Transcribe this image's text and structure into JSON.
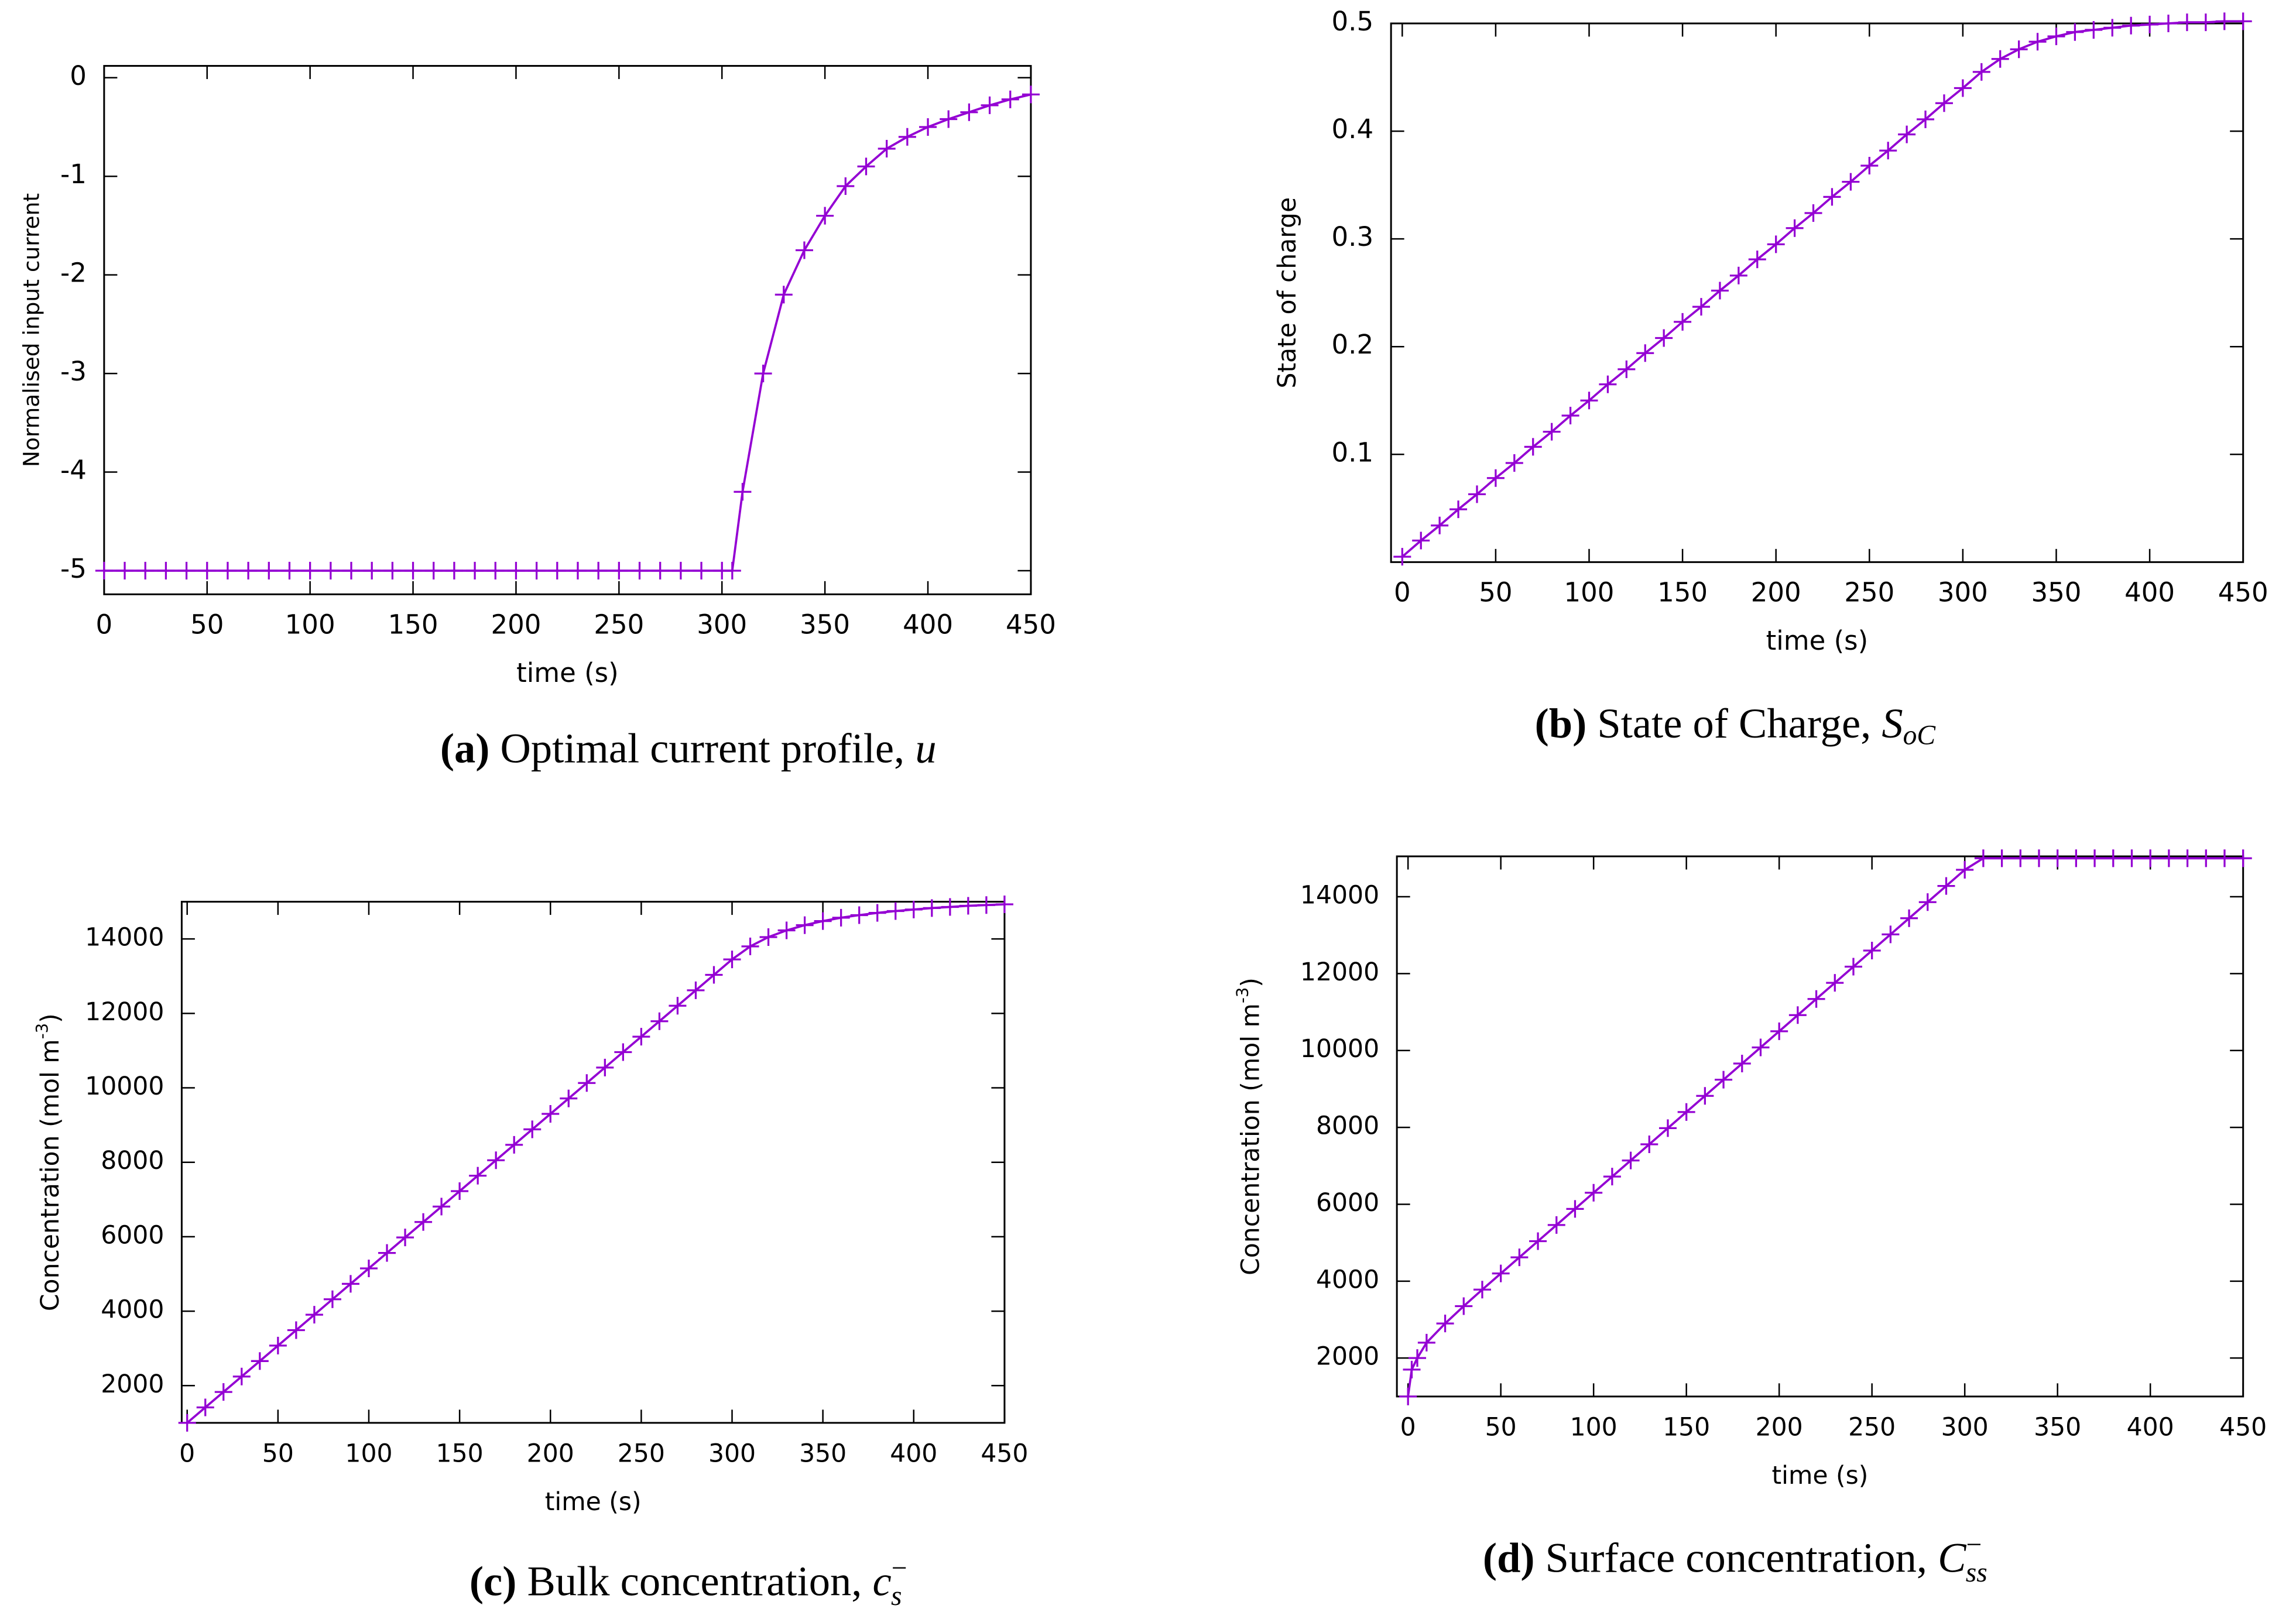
{
  "chart_data": [
    {
      "type": "line",
      "caption_label": "(a)",
      "caption": " Optimal current profile, ",
      "caption_symbol": "u",
      "xlabel": "time (s)",
      "ylabel": "Normalised input current",
      "x": [
        0,
        10,
        20,
        30,
        40,
        50,
        60,
        70,
        80,
        90,
        100,
        110,
        120,
        130,
        140,
        150,
        160,
        170,
        180,
        190,
        200,
        210,
        220,
        230,
        240,
        250,
        260,
        270,
        280,
        290,
        300,
        305,
        310,
        320,
        330,
        340,
        350,
        360,
        370,
        380,
        390,
        400,
        410,
        420,
        430,
        440,
        450
      ],
      "series": [
        {
          "color": "#9400d3",
          "values": [
            -5,
            -5,
            -5,
            -5,
            -5,
            -5,
            -5,
            -5,
            -5,
            -5,
            -5,
            -5,
            -5,
            -5,
            -5,
            -5,
            -5,
            -5,
            -5,
            -5,
            -5,
            -5,
            -5,
            -5,
            -5,
            -5,
            -5,
            -5,
            -5,
            -5,
            -5,
            -5,
            -4.2,
            -3.0,
            -2.2,
            -1.75,
            -1.4,
            -1.1,
            -0.9,
            -0.72,
            -0.6,
            -0.5,
            -0.42,
            -0.35,
            -0.28,
            -0.22,
            -0.17
          ]
        }
      ],
      "xlim": [
        0,
        450
      ],
      "xticks": [
        0,
        50,
        100,
        150,
        200,
        250,
        300,
        350,
        400,
        450
      ],
      "ylim": [
        -5.24,
        0.12
      ],
      "yticks": [
        0,
        -1,
        -2,
        -3,
        -4,
        -5
      ]
    },
    {
      "type": "line",
      "caption_label": "(b)",
      "caption": " State of Charge, ",
      "caption_symbol": "S",
      "caption_sub": "oC",
      "xlabel": "time (s)",
      "ylabel": "State of charge",
      "x": [
        0,
        10,
        20,
        30,
        40,
        50,
        60,
        70,
        80,
        90,
        100,
        110,
        120,
        130,
        140,
        150,
        160,
        170,
        180,
        190,
        200,
        210,
        220,
        230,
        240,
        250,
        260,
        270,
        280,
        290,
        300,
        310,
        320,
        330,
        340,
        350,
        360,
        370,
        380,
        390,
        400,
        410,
        420,
        430,
        440,
        450
      ],
      "series": [
        {
          "color": "#9400d3",
          "values": [
            0.005,
            0.02,
            0.034,
            0.049,
            0.063,
            0.078,
            0.092,
            0.107,
            0.121,
            0.136,
            0.15,
            0.165,
            0.179,
            0.194,
            0.208,
            0.223,
            0.237,
            0.252,
            0.266,
            0.281,
            0.295,
            0.31,
            0.324,
            0.339,
            0.353,
            0.368,
            0.382,
            0.397,
            0.411,
            0.426,
            0.44,
            0.455,
            0.467,
            0.476,
            0.483,
            0.488,
            0.492,
            0.494,
            0.496,
            0.498,
            0.499,
            0.5,
            0.501,
            0.501,
            0.502,
            0.502
          ]
        }
      ],
      "xlim": [
        -6,
        450
      ],
      "xticks": [
        0,
        50,
        100,
        150,
        200,
        250,
        300,
        350,
        400,
        450
      ],
      "ylim": [
        0,
        0.5
      ],
      "yticks": [
        0.1,
        0.2,
        0.3,
        0.4,
        0.5
      ]
    },
    {
      "type": "line",
      "caption_label": "(c)",
      "caption": " Bulk concentration, ",
      "caption_symbol": "c",
      "caption_sub": "s",
      "caption_sup": "−",
      "xlabel": "time (s)",
      "ylabel": "Concentration (mol m",
      "ylabel_sup": "-3",
      "ylabel_end": ")",
      "x": [
        0,
        10,
        20,
        30,
        40,
        50,
        60,
        70,
        80,
        90,
        100,
        110,
        120,
        130,
        140,
        150,
        160,
        170,
        180,
        190,
        200,
        210,
        220,
        230,
        240,
        250,
        260,
        270,
        280,
        290,
        300,
        310,
        320,
        330,
        340,
        350,
        360,
        370,
        380,
        390,
        400,
        410,
        420,
        430,
        440,
        450
      ],
      "series": [
        {
          "color": "#9400d3",
          "values": [
            1000,
            1415,
            1830,
            2245,
            2660,
            3075,
            3490,
            3905,
            4320,
            4735,
            5150,
            5565,
            5980,
            6395,
            6810,
            7225,
            7640,
            8055,
            8470,
            8885,
            9300,
            9715,
            10130,
            10545,
            10960,
            11375,
            11790,
            12205,
            12620,
            13035,
            13450,
            13800,
            14050,
            14230,
            14370,
            14480,
            14570,
            14640,
            14700,
            14750,
            14790,
            14830,
            14860,
            14890,
            14910,
            14930
          ]
        }
      ],
      "xlim": [
        -3,
        450
      ],
      "xticks": [
        0,
        50,
        100,
        150,
        200,
        250,
        300,
        350,
        400,
        450
      ],
      "ylim": [
        1000,
        15000
      ],
      "yticks": [
        2000,
        4000,
        6000,
        8000,
        10000,
        12000,
        14000
      ]
    },
    {
      "type": "line",
      "caption_label": "(d)",
      "caption": " Surface concentration, ",
      "caption_symbol": "C",
      "caption_sub": "ss",
      "caption_sup": "−",
      "xlabel": "time (s)",
      "ylabel": "Concentration (mol m",
      "ylabel_sup": "-3",
      "ylabel_end": ")",
      "x": [
        0,
        2,
        5,
        10,
        20,
        30,
        40,
        50,
        60,
        70,
        80,
        90,
        100,
        110,
        120,
        130,
        140,
        150,
        160,
        170,
        180,
        190,
        200,
        210,
        220,
        230,
        240,
        250,
        260,
        270,
        280,
        290,
        300,
        310,
        320,
        330,
        340,
        350,
        360,
        370,
        380,
        390,
        400,
        410,
        420,
        430,
        440,
        450
      ],
      "series": [
        {
          "color": "#9400d3",
          "values": [
            1000,
            1700,
            2000,
            2400,
            2900,
            3350,
            3780,
            4200,
            4620,
            5040,
            5460,
            5880,
            6300,
            6720,
            7140,
            7560,
            7980,
            8400,
            8820,
            9240,
            9660,
            10080,
            10500,
            10920,
            11340,
            11760,
            12180,
            12600,
            13020,
            13440,
            13860,
            14280,
            14700,
            15000,
            15000,
            15000,
            15000,
            15000,
            15000,
            15000,
            15000,
            15000,
            15000,
            15000,
            15000,
            15000,
            15000,
            15000
          ]
        }
      ],
      "xlim": [
        -6,
        450
      ],
      "xticks": [
        0,
        50,
        100,
        150,
        200,
        250,
        300,
        350,
        400,
        450
      ],
      "ylim": [
        1000,
        15050
      ],
      "yticks": [
        2000,
        4000,
        6000,
        8000,
        10000,
        12000,
        14000
      ]
    }
  ]
}
